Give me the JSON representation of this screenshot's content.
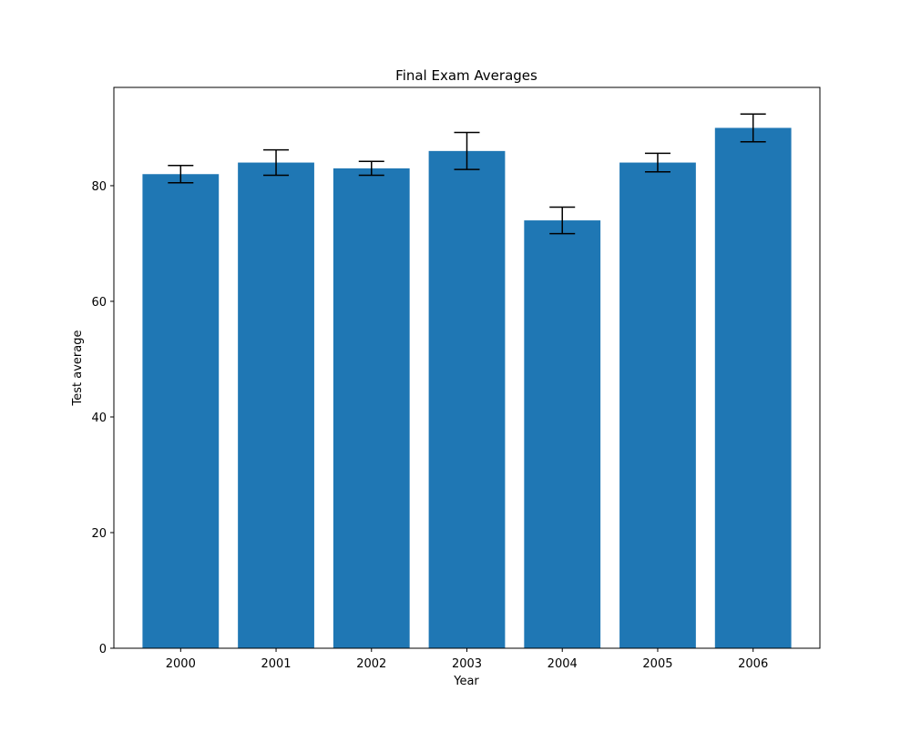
{
  "chart_data": {
    "type": "bar",
    "title": "Final Exam Averages",
    "xlabel": "Year",
    "ylabel": "Test average",
    "categories": [
      "2000",
      "2001",
      "2002",
      "2003",
      "2004",
      "2005",
      "2006"
    ],
    "values": [
      82,
      84,
      83,
      86,
      74,
      84,
      90
    ],
    "errors": [
      1.5,
      2.2,
      1.2,
      3.2,
      2.3,
      1.6,
      2.4
    ],
    "ylim": [
      0,
      97
    ],
    "yticks": [
      0,
      20,
      40,
      60,
      80
    ],
    "grid": false,
    "colors": {
      "bar": "#1f77b4",
      "error": "#000000",
      "axes": "#000000"
    }
  }
}
